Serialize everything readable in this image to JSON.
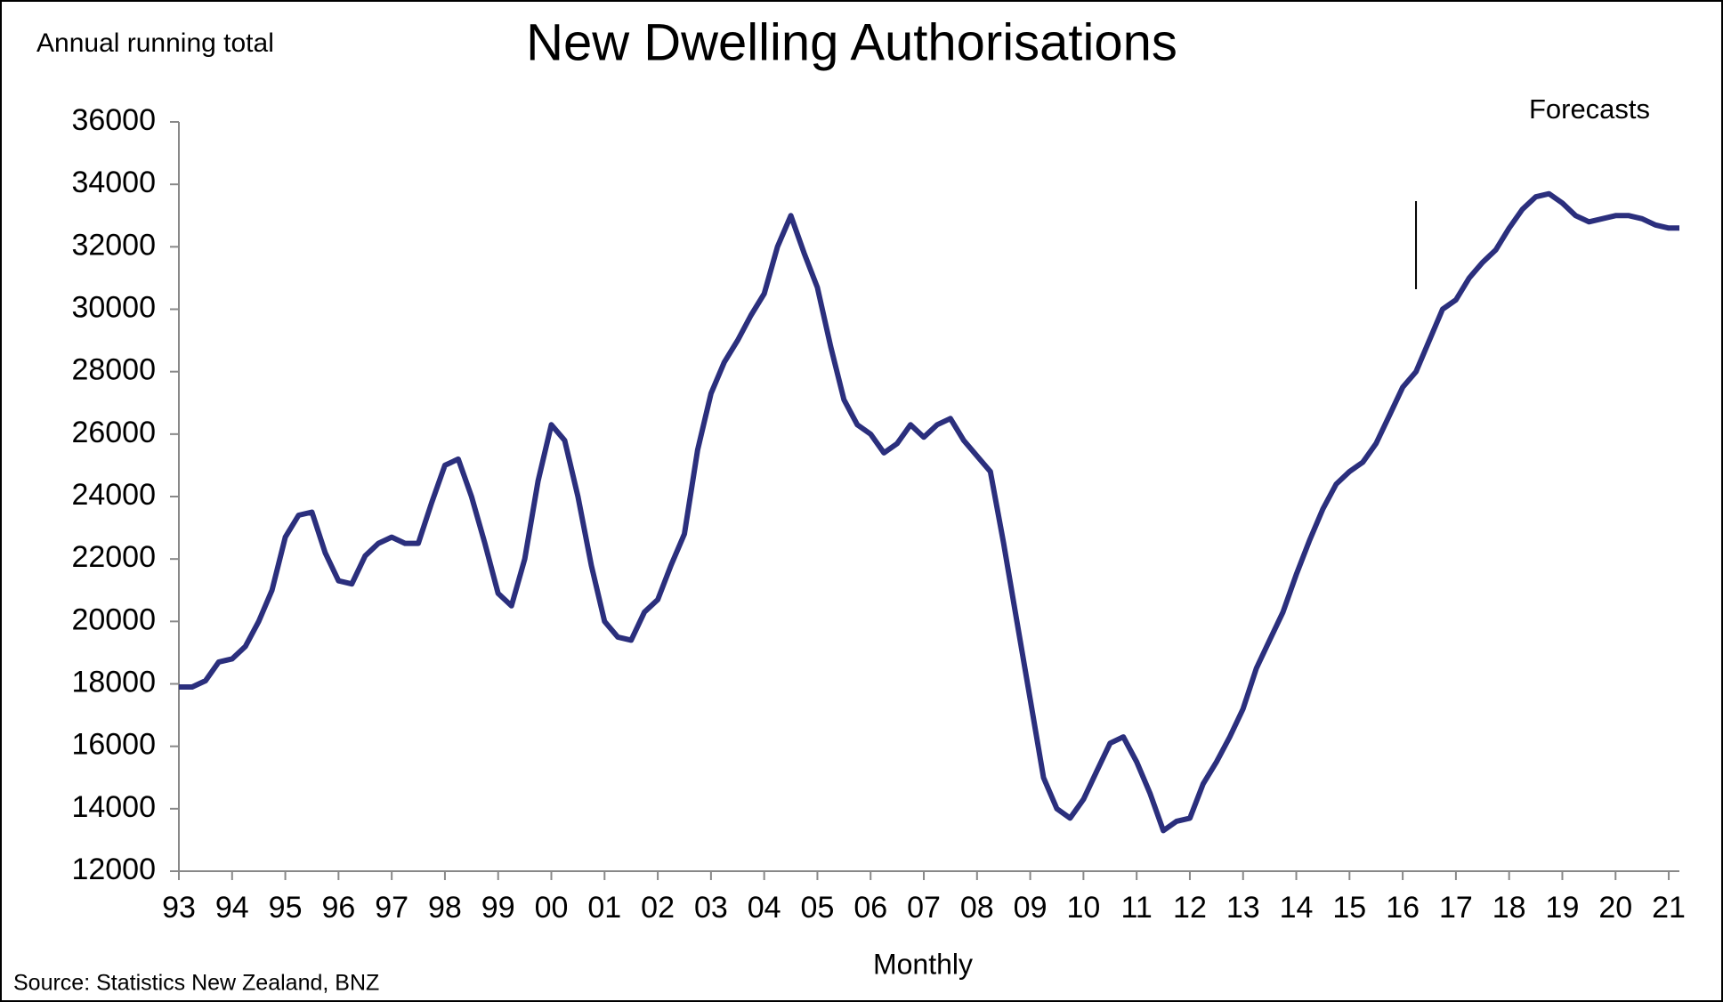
{
  "chart_data": {
    "type": "line",
    "title": "New Dwelling Authorisations",
    "subtitle": "Annual running total",
    "x_label": "Monthly",
    "source": "Source: Statistics New Zealand,  BNZ",
    "forecast_label": "Forecasts",
    "forecast_start": 2016.25,
    "x": [
      1993,
      1993.25,
      1993.5,
      1993.75,
      1994,
      1994.25,
      1994.5,
      1994.75,
      1995,
      1995.25,
      1995.5,
      1995.75,
      1996,
      1996.25,
      1996.5,
      1996.75,
      1997,
      1997.25,
      1997.5,
      1997.75,
      1998,
      1998.25,
      1998.5,
      1998.75,
      1999,
      1999.25,
      1999.5,
      1999.75,
      2000,
      2000.25,
      2000.5,
      2000.75,
      2001,
      2001.25,
      2001.5,
      2001.75,
      2002,
      2002.25,
      2002.5,
      2002.75,
      2003,
      2003.25,
      2003.5,
      2003.75,
      2004,
      2004.25,
      2004.5,
      2004.75,
      2005,
      2005.25,
      2005.5,
      2005.75,
      2006,
      2006.25,
      2006.5,
      2006.75,
      2007,
      2007.25,
      2007.5,
      2007.75,
      2008,
      2008.25,
      2008.5,
      2008.75,
      2009,
      2009.25,
      2009.5,
      2009.75,
      2010,
      2010.25,
      2010.5,
      2010.75,
      2011,
      2011.25,
      2011.5,
      2011.75,
      2012,
      2012.25,
      2012.5,
      2012.75,
      2013,
      2013.25,
      2013.5,
      2013.75,
      2014,
      2014.25,
      2014.5,
      2014.75,
      2015,
      2015.25,
      2015.5,
      2015.75,
      2016,
      2016.25,
      2016.5,
      2016.75,
      2017,
      2017.25,
      2017.5,
      2017.75,
      2018,
      2018.25,
      2018.5,
      2018.75,
      2019,
      2019.25,
      2019.5,
      2019.75,
      2020,
      2020.25,
      2020.5,
      2020.75,
      2021,
      2021.2
    ],
    "series": [
      {
        "color": "#2b2f7d",
        "values": [
          17900,
          17900,
          18100,
          18700,
          18800,
          19200,
          20000,
          21000,
          22700,
          23400,
          23500,
          22200,
          21300,
          21200,
          22100,
          22500,
          22700,
          22500,
          22500,
          23800,
          25000,
          25200,
          24000,
          22500,
          20900,
          20500,
          22000,
          24500,
          26300,
          25800,
          24000,
          21800,
          20000,
          19500,
          19400,
          20300,
          20700,
          21800,
          22800,
          25500,
          27300,
          28300,
          29000,
          29800,
          30500,
          32000,
          33000,
          31800,
          30700,
          28800,
          27100,
          26300,
          26000,
          25400,
          25700,
          26300,
          25900,
          26300,
          26500,
          25800,
          25300,
          24800,
          22500,
          20000,
          17500,
          15000,
          14000,
          13700,
          14300,
          15200,
          16100,
          16300,
          15500,
          14500,
          13300,
          13600,
          13700,
          14800,
          15500,
          16300,
          17200,
          18500,
          19400,
          20300,
          21500,
          22600,
          23600,
          24400,
          24800,
          25100,
          25700,
          26600,
          27500,
          28000,
          29000,
          30000,
          30300,
          31000,
          31500,
          31900,
          32600,
          33200,
          33600,
          33700,
          33400,
          33000,
          32800,
          32900,
          33000,
          33000,
          32900,
          32700,
          32600,
          32600
        ]
      }
    ],
    "xlim": [
      1993,
      2021.2
    ],
    "ylim": [
      12000,
      36000
    ],
    "yticks": [
      12000,
      14000,
      16000,
      18000,
      20000,
      22000,
      24000,
      26000,
      28000,
      30000,
      32000,
      34000,
      36000
    ],
    "xticks": [
      {
        "value": 1993,
        "label": "93"
      },
      {
        "value": 1994,
        "label": "94"
      },
      {
        "value": 1995,
        "label": "95"
      },
      {
        "value": 1996,
        "label": "96"
      },
      {
        "value": 1997,
        "label": "97"
      },
      {
        "value": 1998,
        "label": "98"
      },
      {
        "value": 1999,
        "label": "99"
      },
      {
        "value": 2000,
        "label": "00"
      },
      {
        "value": 2001,
        "label": "01"
      },
      {
        "value": 2002,
        "label": "02"
      },
      {
        "value": 2003,
        "label": "03"
      },
      {
        "value": 2004,
        "label": "04"
      },
      {
        "value": 2005,
        "label": "05"
      },
      {
        "value": 2006,
        "label": "06"
      },
      {
        "value": 2007,
        "label": "07"
      },
      {
        "value": 2008,
        "label": "08"
      },
      {
        "value": 2009,
        "label": "09"
      },
      {
        "value": 2010,
        "label": "10"
      },
      {
        "value": 2011,
        "label": "11"
      },
      {
        "value": 2012,
        "label": "12"
      },
      {
        "value": 2013,
        "label": "13"
      },
      {
        "value": 2014,
        "label": "14"
      },
      {
        "value": 2015,
        "label": "15"
      },
      {
        "value": 2016,
        "label": "16"
      },
      {
        "value": 2017,
        "label": "17"
      },
      {
        "value": 2018,
        "label": "18"
      },
      {
        "value": 2019,
        "label": "19"
      },
      {
        "value": 2020,
        "label": "20"
      },
      {
        "value": 2021,
        "label": "21"
      }
    ],
    "grid": false
  }
}
